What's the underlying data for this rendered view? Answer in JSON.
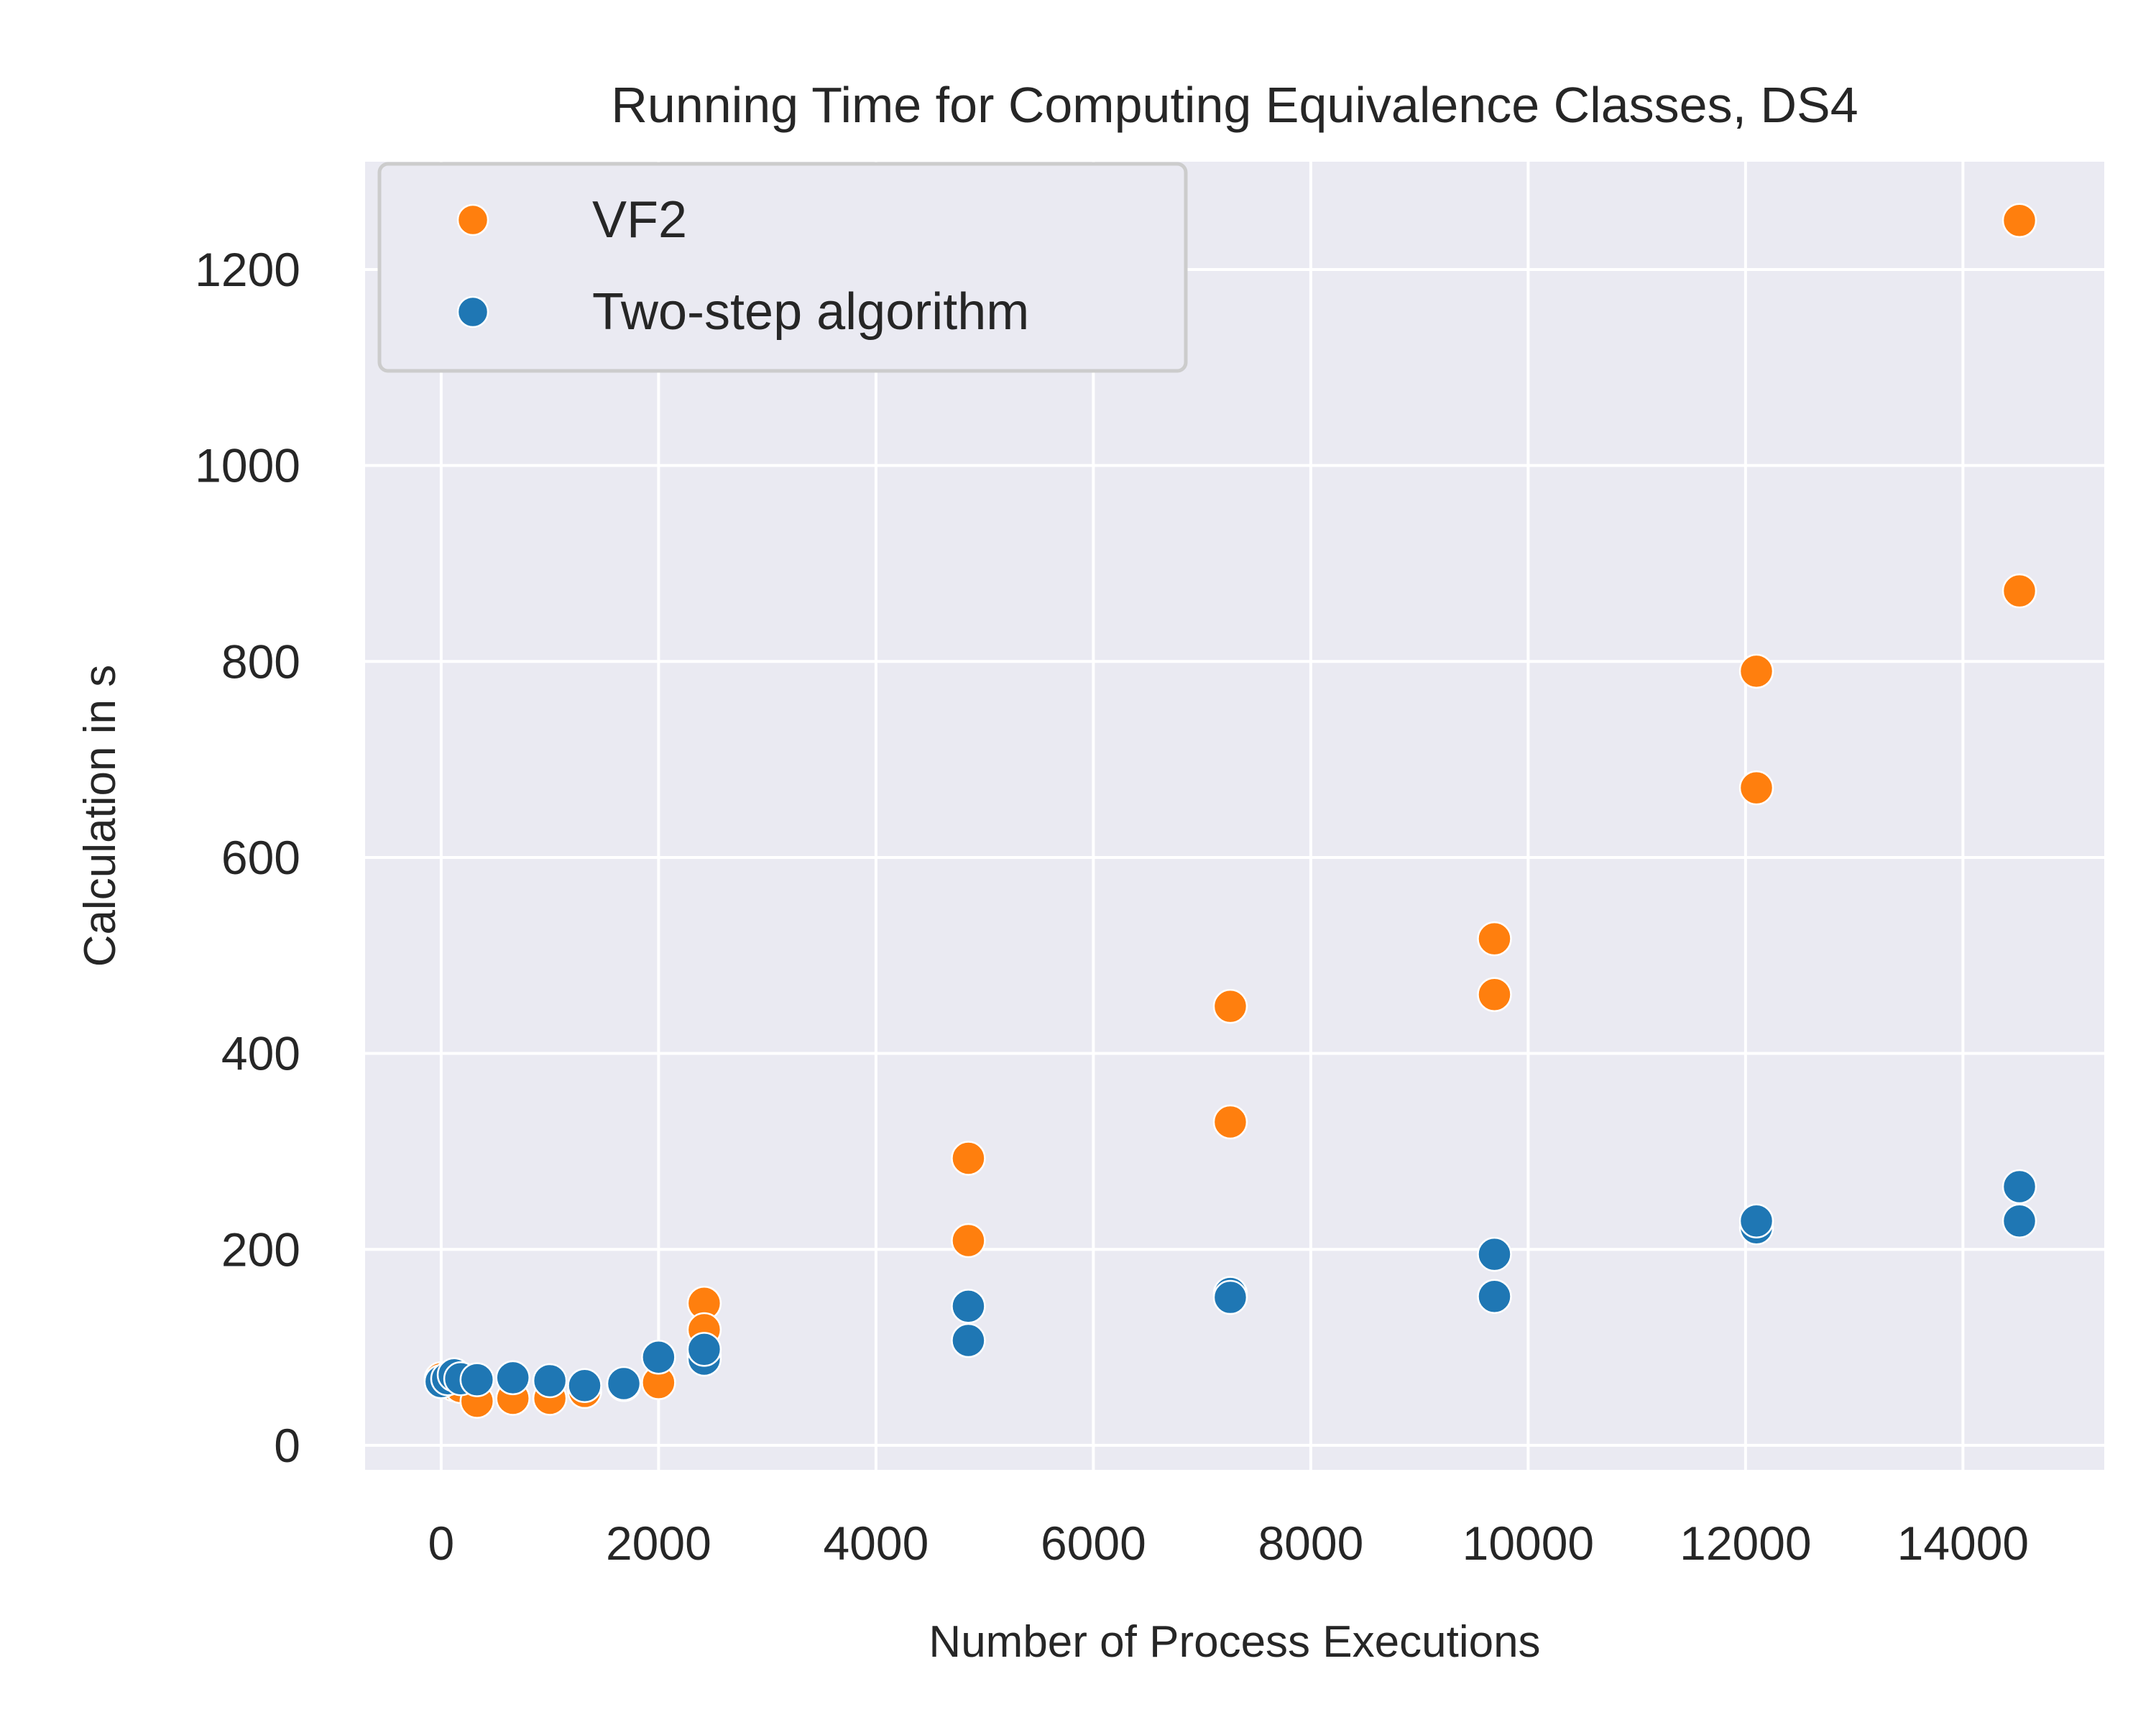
{
  "chart_data": {
    "type": "scatter",
    "title": "Running Time for Computing Equivalence Classes, DS4",
    "xlabel": "Number of Process Executions",
    "ylabel": "Calculation in s",
    "xlim": [
      -700,
      15300
    ],
    "ylim": [
      -25,
      1310
    ],
    "xticks": [
      0,
      2000,
      4000,
      6000,
      8000,
      10000,
      12000,
      14000
    ],
    "yticks": [
      0,
      200,
      400,
      600,
      800,
      1000,
      1200
    ],
    "xtick_labels": [
      "0",
      "2000",
      "4000",
      "6000",
      "8000",
      "10000",
      "12000",
      "14000"
    ],
    "ytick_labels": [
      "0",
      "200",
      "400",
      "600",
      "800",
      "1000",
      "1200"
    ],
    "grid": true,
    "legend_position": "top-left",
    "background": "#eaeaf2",
    "series": [
      {
        "name": "VF2",
        "color": "#ff7f0e",
        "points": [
          [
            0,
            68
          ],
          [
            60,
            65
          ],
          [
            120,
            62
          ],
          [
            180,
            60
          ],
          [
            330,
            45
          ],
          [
            660,
            48
          ],
          [
            1000,
            48
          ],
          [
            1320,
            55
          ],
          [
            1680,
            62
          ],
          [
            2000,
            64
          ],
          [
            2420,
            145
          ],
          [
            2420,
            118
          ],
          [
            2420,
            92
          ],
          [
            4850,
            293
          ],
          [
            4850,
            209
          ],
          [
            7260,
            448
          ],
          [
            7260,
            330
          ],
          [
            9690,
            517
          ],
          [
            9690,
            460
          ],
          [
            12100,
            790
          ],
          [
            12100,
            671
          ],
          [
            14520,
            1250
          ],
          [
            14520,
            872
          ]
        ]
      },
      {
        "name": "Two-step algorithm",
        "color": "#1f77b4",
        "points": [
          [
            0,
            65
          ],
          [
            60,
            68
          ],
          [
            120,
            72
          ],
          [
            180,
            68
          ],
          [
            330,
            67
          ],
          [
            660,
            69
          ],
          [
            1000,
            66
          ],
          [
            1320,
            61
          ],
          [
            1680,
            63
          ],
          [
            2000,
            90
          ],
          [
            2420,
            88
          ],
          [
            2420,
            98
          ],
          [
            4850,
            142
          ],
          [
            4850,
            107
          ],
          [
            7260,
            155
          ],
          [
            7260,
            151
          ],
          [
            9690,
            195
          ],
          [
            9690,
            152
          ],
          [
            12100,
            222
          ],
          [
            12100,
            229
          ],
          [
            14520,
            229
          ],
          [
            14520,
            264
          ]
        ]
      }
    ]
  }
}
